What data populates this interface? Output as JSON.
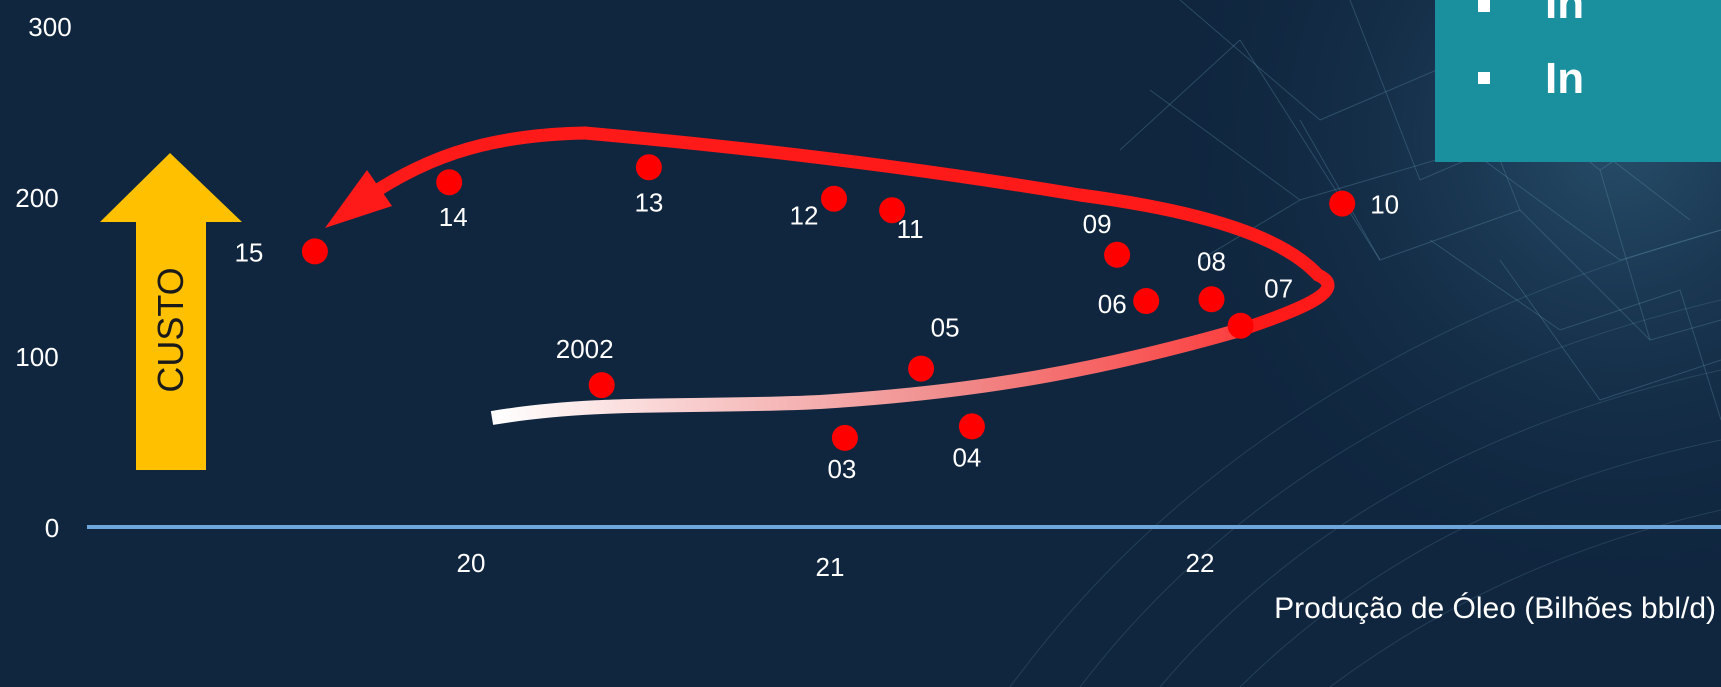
{
  "bullets": [
    "In",
    "In"
  ],
  "custo_label": "CUSTO",
  "colors": {
    "background": "#10263f",
    "point": "#ff0000",
    "axis_line": "#6ea6dc",
    "custo_arrow": "#ffc000",
    "callout_box": "#1a8f9e",
    "trajectory_arrow": "#ff1a1a"
  },
  "chart_data": {
    "type": "scatter",
    "title": "",
    "xlabel": "Produção de Óleo (Bilhões bbl/d)",
    "ylabel": "",
    "x_ticks": [
      "20",
      "21",
      "22"
    ],
    "y_ticks": [
      "0",
      "100",
      "200",
      "300"
    ],
    "xlim": [
      19.05,
      23.1
    ],
    "ylim": [
      0,
      300
    ],
    "grid": false,
    "points": [
      {
        "label": "2002",
        "x": 20.36,
        "y": 86
      },
      {
        "label": "03",
        "x": 21.03,
        "y": 54
      },
      {
        "label": "04",
        "x": 21.38,
        "y": 61
      },
      {
        "label": "05",
        "x": 21.24,
        "y": 96
      },
      {
        "label": "06",
        "x": 21.86,
        "y": 137
      },
      {
        "label": "07",
        "x": 22.12,
        "y": 122
      },
      {
        "label": "08",
        "x": 22.04,
        "y": 138
      },
      {
        "label": "09",
        "x": 21.78,
        "y": 165
      },
      {
        "label": "10",
        "x": 22.4,
        "y": 196
      },
      {
        "label": "11",
        "x": 21.16,
        "y": 192
      },
      {
        "label": "12",
        "x": 21.0,
        "y": 199
      },
      {
        "label": "13",
        "x": 20.49,
        "y": 218
      },
      {
        "label": "14",
        "x": 19.94,
        "y": 209
      },
      {
        "label": "15",
        "x": 19.57,
        "y": 167
      }
    ]
  }
}
